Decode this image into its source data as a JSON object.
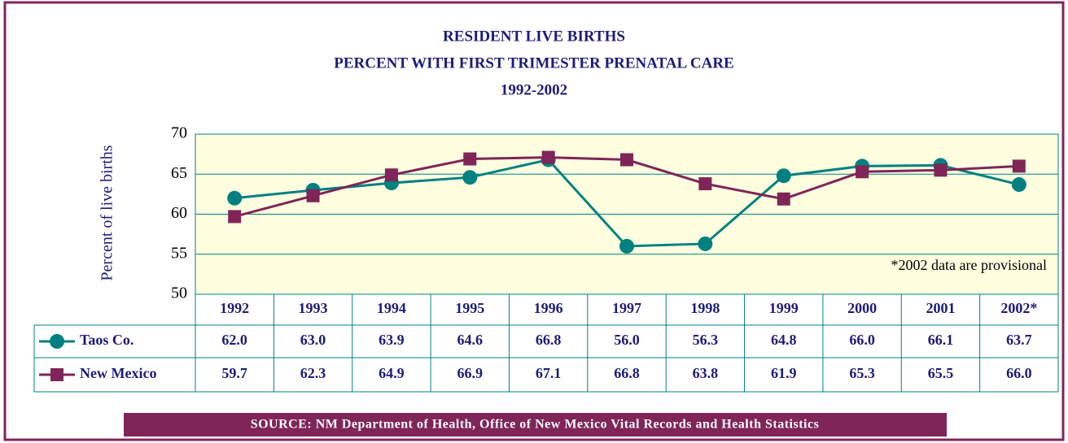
{
  "chart_data": {
    "type": "line",
    "title": [
      "RESIDENT LIVE BIRTHS",
      "PERCENT WITH FIRST TRIMESTER PRENATAL CARE",
      "1992-2002"
    ],
    "y_label": "Percent of live births",
    "categories": [
      "1992",
      "1993",
      "1994",
      "1995",
      "1996",
      "1997",
      "1998",
      "1999",
      "2000",
      "2001",
      "2002*"
    ],
    "series": [
      {
        "name": "Taos Co.",
        "color": "#008080",
        "marker": "circle",
        "values": [
          62.0,
          63.0,
          63.9,
          64.6,
          66.8,
          56.0,
          56.3,
          64.8,
          66.0,
          66.1,
          63.7
        ],
        "value_labels": [
          "62.0",
          "63.0",
          "63.9",
          "64.6",
          "66.8",
          "56.0",
          "56.3",
          "64.8",
          "66.0",
          "66.1",
          "63.7"
        ]
      },
      {
        "name": "New Mexico",
        "color": "#7f2558",
        "marker": "square",
        "values": [
          59.7,
          62.3,
          64.9,
          66.9,
          67.1,
          66.8,
          63.8,
          61.9,
          65.3,
          65.5,
          66.0
        ],
        "value_labels": [
          "59.7",
          "62.3",
          "64.9",
          "66.9",
          "67.1",
          "66.8",
          "63.8",
          "61.9",
          "65.3",
          "65.5",
          "66.0"
        ]
      }
    ],
    "ylim": [
      50,
      70
    ],
    "yticks": [
      50,
      55,
      60,
      65,
      70
    ],
    "grid": true,
    "annotation": "*2002 data are provisional",
    "source": "SOURCE: NM Department of Health, Office of New Mexico Vital Records and Health Statistics"
  }
}
